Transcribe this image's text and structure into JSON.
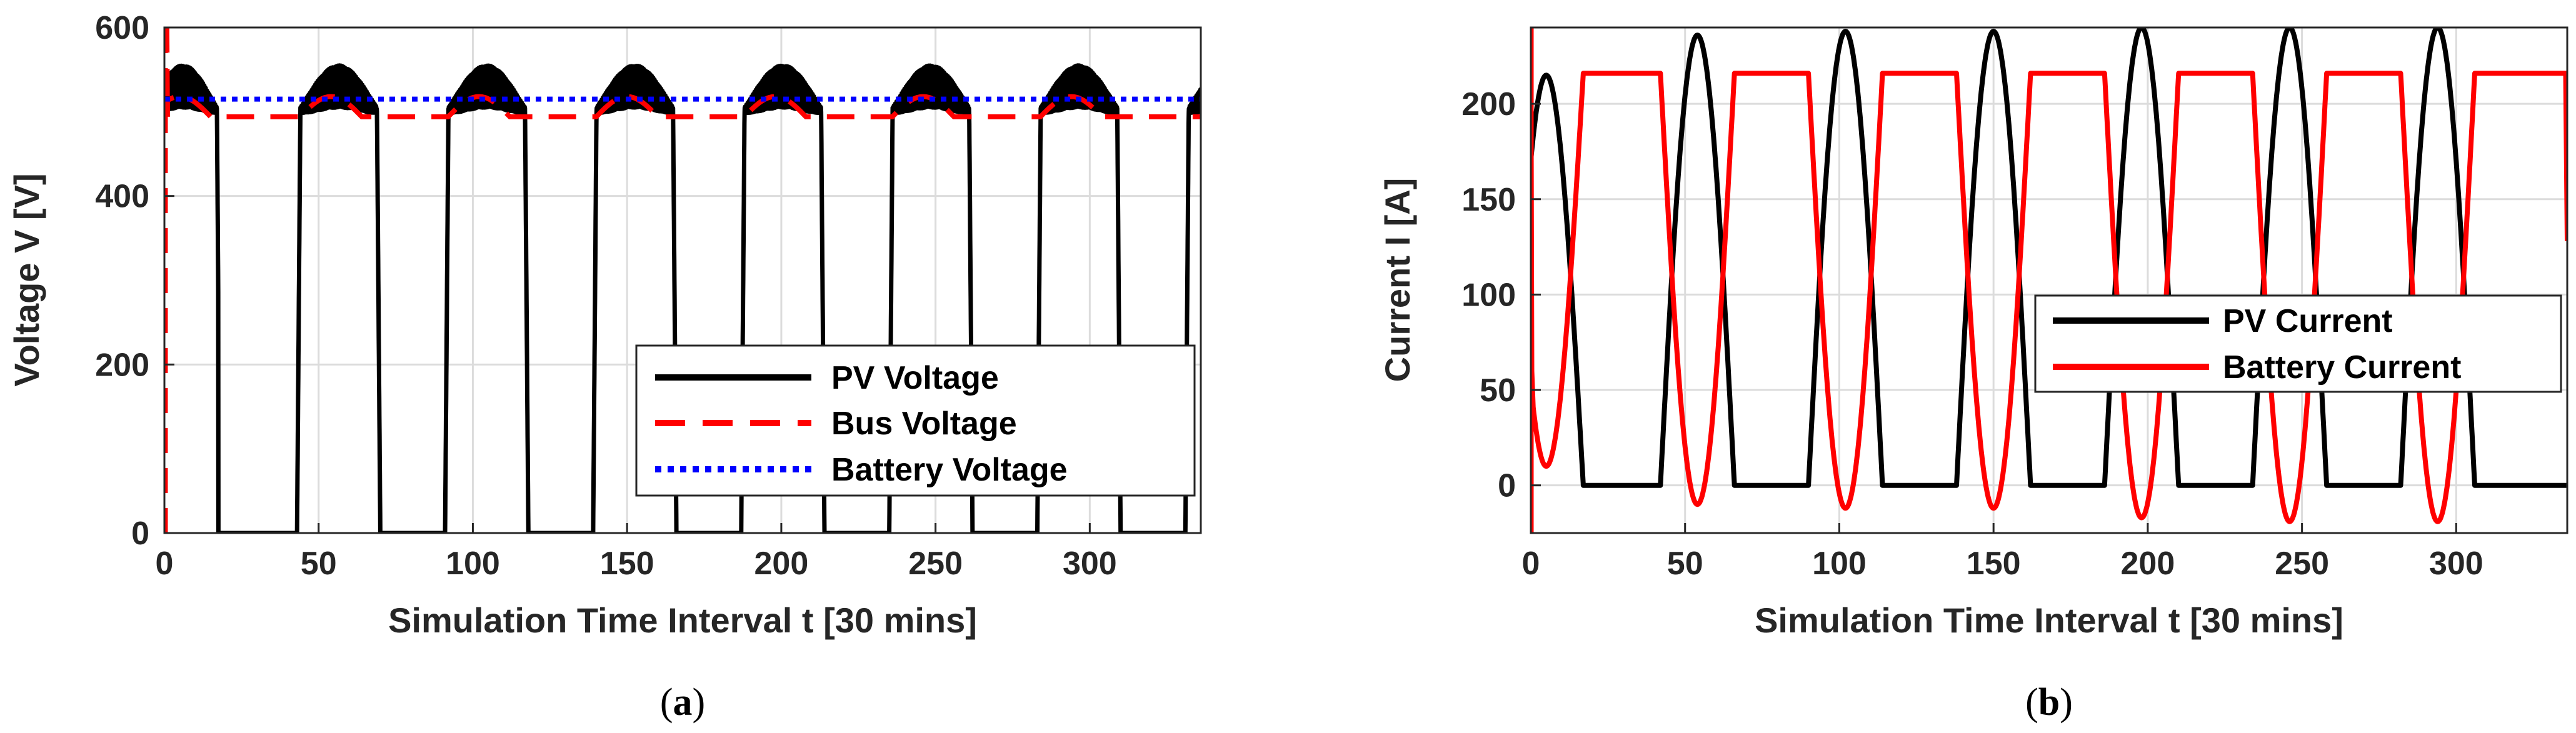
{
  "chart_data": [
    {
      "id": "a",
      "type": "line",
      "caption": {
        "open": "(",
        "letter": "a",
        "close": ")"
      },
      "xlabel": "Simulation Time Interval t [30 mins]",
      "ylabel": "Voltage V [V]",
      "xlim": [
        0,
        336
      ],
      "ylim": [
        0,
        600
      ],
      "xticks": [
        0,
        50,
        100,
        150,
        200,
        250,
        300
      ],
      "yticks": [
        0,
        200,
        400,
        600
      ],
      "grid": true,
      "legend_position": "lower-right",
      "series": [
        {
          "name": "PV Voltage",
          "color": "#000000",
          "style": "solid",
          "model": {
            "period": 48,
            "offset": 5,
            "on_from": 0,
            "on_to": 12.5,
            "base": 500,
            "amp": 60,
            "ripple": 25,
            "startup_peak": 480,
            "dips": [
              16,
              112
            ]
          }
        },
        {
          "name": "Bus Voltage",
          "color": "#ff0000",
          "style": "dashed",
          "model": {
            "low": 494,
            "high": 518,
            "init_spike": 600
          }
        },
        {
          "name": "Battery Voltage",
          "color": "#0000ff",
          "style": "dotted",
          "model": {
            "level": 515
          }
        }
      ]
    },
    {
      "id": "b",
      "type": "line",
      "caption": {
        "open": "(",
        "letter": "b",
        "close": ")"
      },
      "xlabel": "Simulation Time Interval t [30 mins]",
      "ylabel": "Current I [A]",
      "xlim": [
        0,
        336
      ],
      "ylim": [
        -25,
        240
      ],
      "xticks": [
        0,
        50,
        100,
        150,
        200,
        250,
        300
      ],
      "yticks": [
        0,
        50,
        100,
        150,
        200
      ],
      "grid": true,
      "legend_position": "middle-right",
      "series": [
        {
          "name": "PV Current",
          "color": "#000000",
          "style": "solid",
          "peaks": [
            215,
            236,
            238,
            238,
            240,
            240,
            240
          ],
          "peak_times": [
            5,
            54,
            102,
            150,
            198,
            246,
            294
          ],
          "half_width": 12
        },
        {
          "name": "Battery Current",
          "color": "#ff0000",
          "style": "solid",
          "plateau": 216,
          "troughs": [
            10,
            -10,
            -12,
            -12,
            -17,
            -19,
            -19
          ],
          "trough_times": [
            5,
            54,
            102,
            150,
            198,
            246,
            294
          ],
          "init_value": 240,
          "end_value": 128
        }
      ]
    }
  ]
}
